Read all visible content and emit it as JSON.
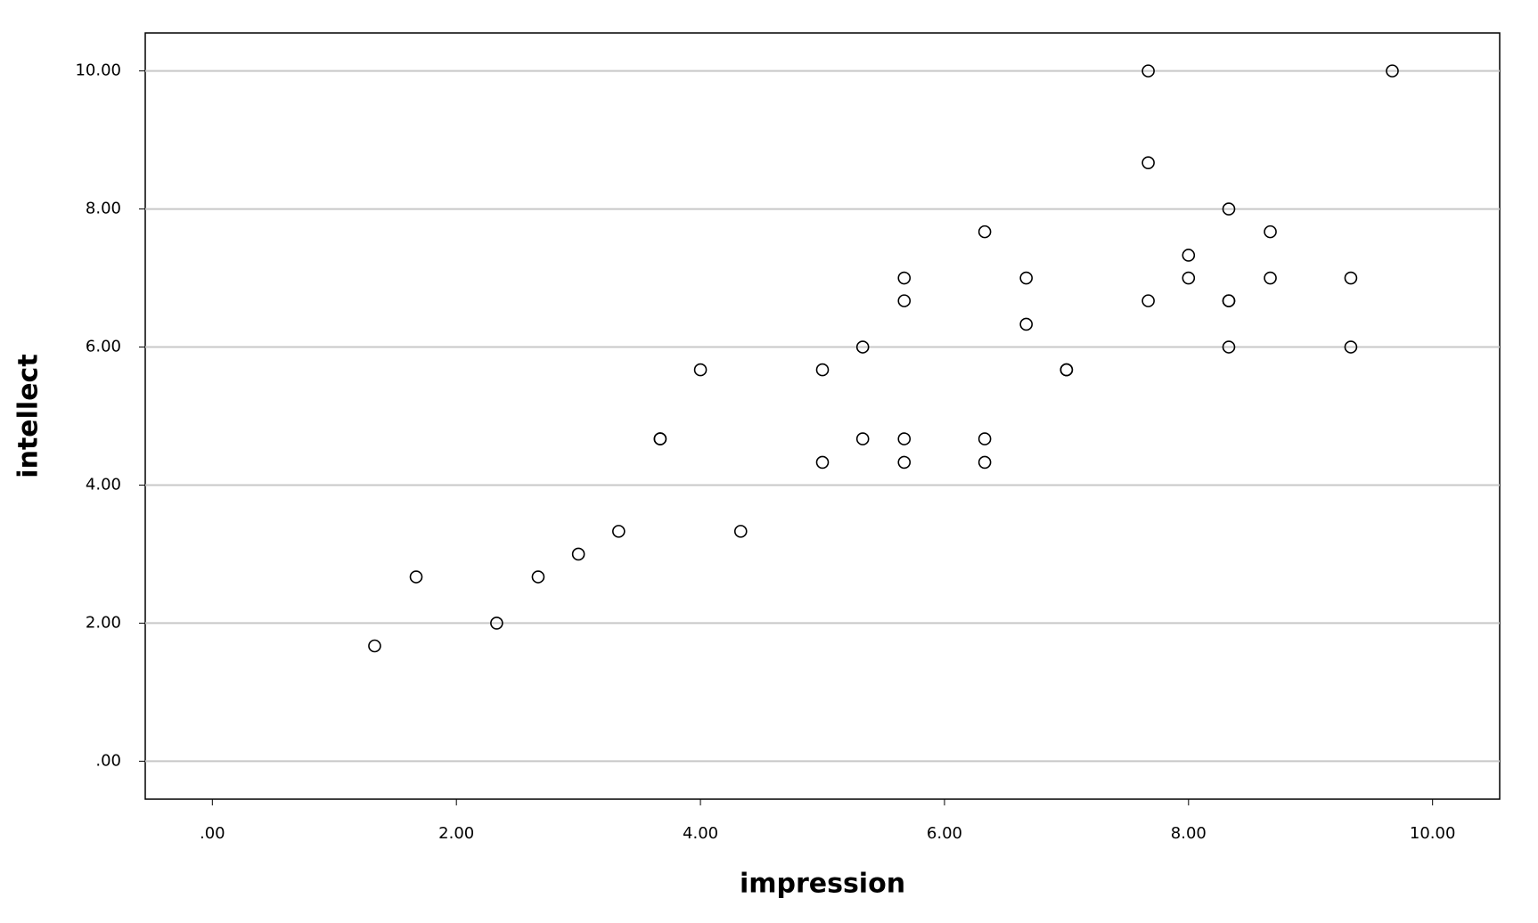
{
  "chart_data": {
    "type": "scatter",
    "x_label": "impression",
    "y_label": "intellect",
    "x": [
      1.33,
      1.67,
      2.33,
      2.67,
      3,
      3.33,
      3.67,
      3.67,
      4,
      4.33,
      5,
      5,
      5.33,
      5.33,
      5.67,
      5.67,
      5.67,
      5.67,
      6.33,
      6.33,
      6.33,
      6.67,
      6.67,
      7,
      7,
      7.67,
      7.67,
      7.67,
      8,
      8,
      8.33,
      8.33,
      8.33,
      8.33,
      8.67,
      8.67,
      9.33,
      9.33,
      9.67
    ],
    "y": [
      1.67,
      2.67,
      2,
      2.67,
      3,
      3.33,
      4.67,
      4.67,
      5.67,
      3.33,
      5.67,
      4.33,
      6,
      4.67,
      7,
      6.67,
      4.67,
      4.33,
      7.67,
      4.67,
      4.33,
      7,
      6.33,
      5.67,
      5.67,
      10,
      8.67,
      6.67,
      7.33,
      7,
      8,
      6.67,
      6.67,
      6,
      7.67,
      7,
      7,
      6,
      10
    ],
    "xlim": [
      -0.55,
      10.55
    ],
    "ylim": [
      -0.55,
      10.55
    ],
    "xticks": [
      {
        "value": 0,
        "label": ".00"
      },
      {
        "value": 2,
        "label": "2.00"
      },
      {
        "value": 4,
        "label": "4.00"
      },
      {
        "value": 6,
        "label": "6.00"
      },
      {
        "value": 8,
        "label": "8.00"
      },
      {
        "value": 10,
        "label": "10.00"
      }
    ],
    "yticks": [
      {
        "value": 0,
        "label": ".00"
      },
      {
        "value": 2,
        "label": "2.00"
      },
      {
        "value": 4,
        "label": "4.00"
      },
      {
        "value": 6,
        "label": "6.00"
      },
      {
        "value": 8,
        "label": "8.00"
      },
      {
        "value": 10,
        "label": "10.00"
      }
    ],
    "grid": true,
    "color": "#000000"
  }
}
